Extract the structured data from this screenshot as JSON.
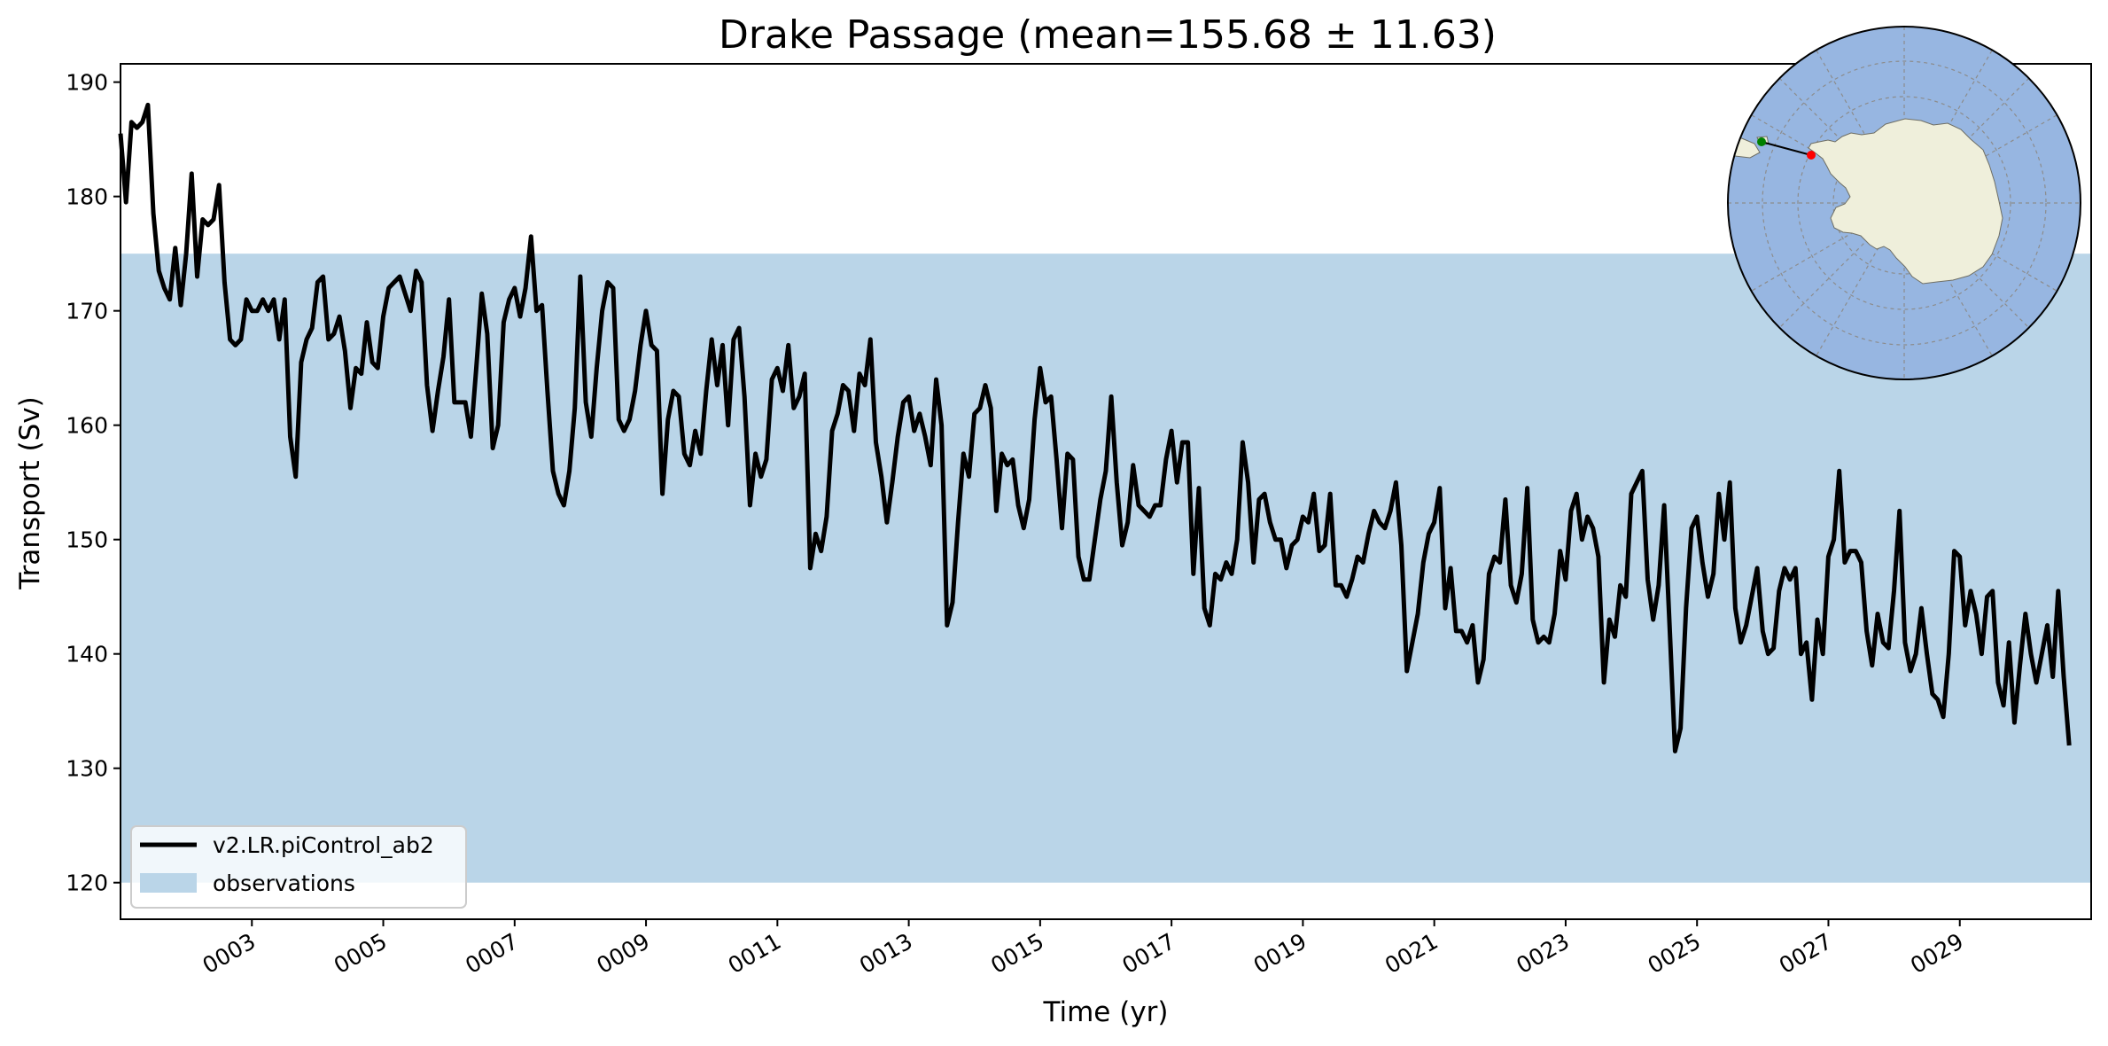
{
  "chart_data": {
    "type": "line",
    "title": "Drake Passage (mean=155.68 ± 11.63)",
    "xlabel": "Time (yr)",
    "ylabel": "Transport (Sv)",
    "xlim": [
      1.0,
      31.0
    ],
    "ylim": [
      116.8,
      191.6
    ],
    "x_ticks": [
      3,
      5,
      7,
      9,
      11,
      13,
      15,
      17,
      19,
      21,
      23,
      25,
      27,
      29
    ],
    "x_tick_labels": [
      "0003",
      "0005",
      "0007",
      "0009",
      "0011",
      "0013",
      "0015",
      "0017",
      "0019",
      "0021",
      "0023",
      "0025",
      "0027",
      "0029"
    ],
    "y_ticks": [
      120,
      130,
      140,
      150,
      160,
      170,
      180,
      190
    ],
    "y_tick_labels": [
      "120",
      "130",
      "140",
      "150",
      "160",
      "170",
      "180",
      "190"
    ],
    "grid": false,
    "legend_position": "lower-left",
    "observations": {
      "name": "observations",
      "min": 120,
      "max": 175,
      "color": "#bad5e8"
    },
    "series": [
      {
        "name": "v2.LR.piControl_ab2",
        "color": "#000000",
        "x_start": 1.0,
        "x_step": 0.08333,
        "values": [
          185.5,
          179.5,
          186.5,
          186.0,
          186.5,
          188.0,
          178.5,
          173.5,
          172.0,
          171.0,
          175.5,
          170.5,
          175.0,
          182.0,
          173.0,
          178.0,
          177.5,
          178.0,
          181.0,
          172.5,
          167.5,
          167.0,
          167.5,
          171.0,
          170.0,
          170.0,
          171.0,
          170.0,
          171.0,
          167.5,
          171.0,
          159.0,
          155.5,
          165.5,
          167.5,
          168.5,
          172.5,
          173.0,
          167.5,
          168.0,
          169.5,
          166.5,
          161.5,
          165.0,
          164.5,
          169.0,
          165.5,
          165.0,
          169.5,
          172.0,
          172.5,
          173.0,
          171.5,
          170.0,
          173.5,
          172.5,
          163.5,
          159.5,
          163.0,
          166.0,
          171.0,
          162.0,
          162.0,
          162.0,
          159.0,
          165.0,
          171.5,
          168.0,
          158.0,
          160.0,
          169.0,
          171.0,
          172.0,
          169.5,
          172.0,
          176.5,
          170.0,
          170.5,
          163.0,
          156.0,
          154.0,
          153.0,
          156.0,
          161.5,
          173.0,
          162.0,
          159.0,
          165.0,
          170.0,
          172.5,
          172.0,
          160.5,
          159.5,
          160.5,
          163.0,
          167.0,
          170.0,
          167.0,
          166.5,
          154.0,
          160.5,
          163.0,
          162.5,
          157.5,
          156.5,
          159.5,
          157.5,
          163.0,
          167.5,
          163.5,
          167.0,
          160.0,
          167.5,
          168.5,
          162.5,
          153.0,
          157.5,
          155.5,
          157.0,
          164.0,
          165.0,
          163.0,
          167.0,
          161.5,
          162.5,
          164.5,
          147.5,
          150.5,
          149.0,
          152.0,
          159.5,
          161.0,
          163.5,
          163.0,
          159.5,
          164.5,
          163.5,
          167.5,
          158.5,
          155.5,
          151.5,
          155.0,
          159.0,
          162.0,
          162.5,
          159.5,
          161.0,
          159.0,
          156.5,
          164.0,
          160.0,
          142.5,
          144.5,
          151.5,
          157.5,
          155.5,
          161.0,
          161.5,
          163.5,
          161.5,
          152.5,
          157.5,
          156.5,
          157.0,
          153.0,
          151.0,
          153.5,
          160.5,
          165.0,
          162.0,
          162.5,
          157.0,
          151.0,
          157.5,
          157.0,
          148.5,
          146.5,
          146.5,
          150.0,
          153.5,
          156.0,
          162.5,
          155.0,
          149.5,
          151.5,
          156.5,
          153.0,
          152.5,
          152.0,
          153.0,
          153.0,
          157.0,
          159.5,
          155.0,
          158.5,
          158.5,
          147.0,
          154.5,
          144.0,
          142.5,
          147.0,
          146.5,
          148.0,
          147.0,
          150.0,
          158.5,
          155.0,
          148.0,
          153.5,
          154.0,
          151.5,
          150.0,
          150.0,
          147.5,
          149.5,
          150.0,
          152.0,
          151.5,
          154.0,
          149.0,
          149.5,
          154.0,
          146.0,
          146.0,
          145.0,
          146.5,
          148.5,
          148.0,
          150.5,
          152.5,
          151.5,
          151.0,
          152.5,
          155.0,
          149.5,
          138.5,
          141.0,
          143.5,
          148.0,
          150.5,
          151.5,
          154.5,
          144.0,
          147.5,
          142.0,
          142.0,
          141.0,
          142.5,
          137.5,
          139.5,
          147.0,
          148.5,
          148.0,
          153.5,
          146.0,
          144.5,
          147.0,
          154.5,
          143.0,
          141.0,
          141.5,
          141.0,
          143.5,
          149.0,
          146.5,
          152.5,
          154.0,
          150.0,
          152.0,
          151.0,
          148.5,
          137.5,
          143.0,
          141.5,
          146.0,
          145.0,
          154.0,
          155.0,
          156.0,
          146.5,
          143.0,
          146.0,
          153.0,
          142.5,
          131.5,
          133.5,
          144.0,
          151.0,
          152.0,
          148.0,
          145.0,
          147.0,
          154.0,
          150.0,
          155.0,
          144.0,
          141.0,
          142.5,
          145.0,
          147.5,
          142.0,
          140.0,
          140.5,
          145.5,
          147.5,
          146.5,
          147.5,
          140.0,
          141.0,
          136.0,
          143.0,
          140.0,
          148.5,
          150.0,
          156.0,
          148.0,
          149.0,
          149.0,
          148.0,
          142.0,
          139.0,
          143.5,
          141.0,
          140.5,
          145.5,
          152.5,
          141.0,
          138.5,
          140.0,
          144.0,
          140.0,
          136.5,
          136.0,
          134.5,
          140.0,
          149.0,
          148.5,
          142.5,
          145.5,
          143.5,
          140.0,
          145.0,
          145.5,
          137.5,
          135.5,
          141.0,
          134.0,
          139.0,
          143.5,
          140.0,
          137.5,
          140.0,
          142.5,
          138.0,
          145.5,
          138.0,
          132.0
        ]
      }
    ],
    "inset_map": {
      "projection": "south-polar",
      "ocean_color": "#97b6e1",
      "land_color": "#efefdb",
      "start_point_color": "#008000",
      "end_point_color": "#ff0000"
    }
  }
}
